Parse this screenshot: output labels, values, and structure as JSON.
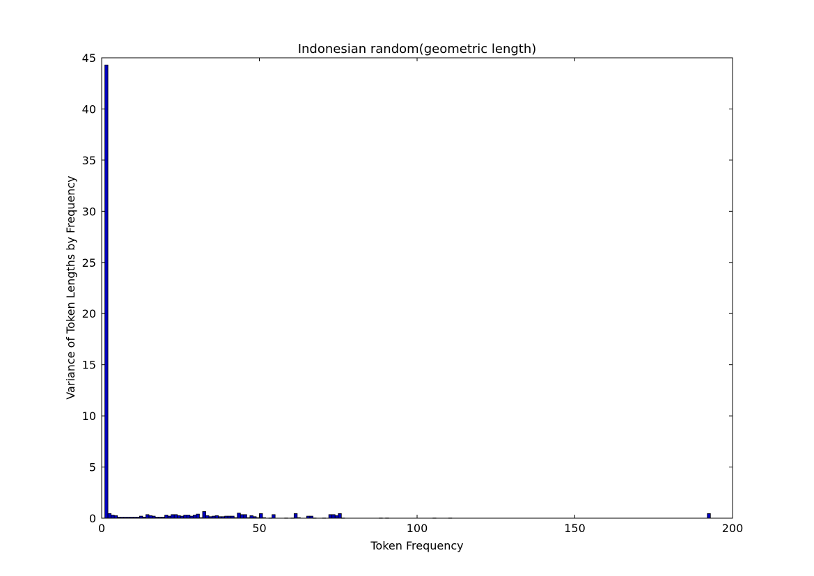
{
  "chart_data": {
    "type": "bar",
    "title": "Indonesian random(geometric length)",
    "xlabel": "Token Frequency",
    "ylabel": "Variance of Token Lengths by Frequency",
    "xlim": [
      0,
      200
    ],
    "ylim": [
      0,
      45
    ],
    "xticks": [
      "0",
      "50",
      "100",
      "150",
      "200"
    ],
    "yticks": [
      "0",
      "5",
      "10",
      "15",
      "20",
      "25",
      "30",
      "35",
      "40",
      "45"
    ],
    "bar_width": 1,
    "grid": false,
    "colors": {
      "bar_fill": "#0000bf",
      "bar_edge": "#000000",
      "axes": "#000000"
    },
    "x": [
      1,
      2,
      3,
      4,
      5,
      6,
      7,
      8,
      9,
      10,
      11,
      12,
      13,
      14,
      15,
      16,
      17,
      18,
      19,
      20,
      21,
      22,
      23,
      24,
      25,
      26,
      27,
      28,
      29,
      30,
      31,
      32,
      33,
      34,
      35,
      36,
      37,
      38,
      39,
      40,
      41,
      42,
      43,
      44,
      45,
      46,
      47,
      48,
      49,
      50,
      51,
      53,
      54,
      58,
      60,
      61,
      62,
      65,
      66,
      67,
      70,
      72,
      73,
      74,
      75,
      76,
      88,
      90,
      105,
      110,
      192
    ],
    "values": [
      44.3,
      0.45,
      0.3,
      0.25,
      0.1,
      0.1,
      0.1,
      0.1,
      0.1,
      0.1,
      0.1,
      0.2,
      0.1,
      0.35,
      0.25,
      0.2,
      0.1,
      0.1,
      0.1,
      0.3,
      0.2,
      0.35,
      0.35,
      0.25,
      0.2,
      0.3,
      0.3,
      0.2,
      0.3,
      0.4,
      0.05,
      0.65,
      0.25,
      0.15,
      0.2,
      0.25,
      0.15,
      0.15,
      0.2,
      0.2,
      0.2,
      0.05,
      0.5,
      0.35,
      0.35,
      0.05,
      0.25,
      0.15,
      0.05,
      0.45,
      0.05,
      0.02,
      0.35,
      0.02,
      0.02,
      0.45,
      0.05,
      0.2,
      0.2,
      0.02,
      0.02,
      0.35,
      0.35,
      0.25,
      0.45,
      0.02,
      0.02,
      0.02,
      0.02,
      0.02,
      0.45
    ]
  }
}
